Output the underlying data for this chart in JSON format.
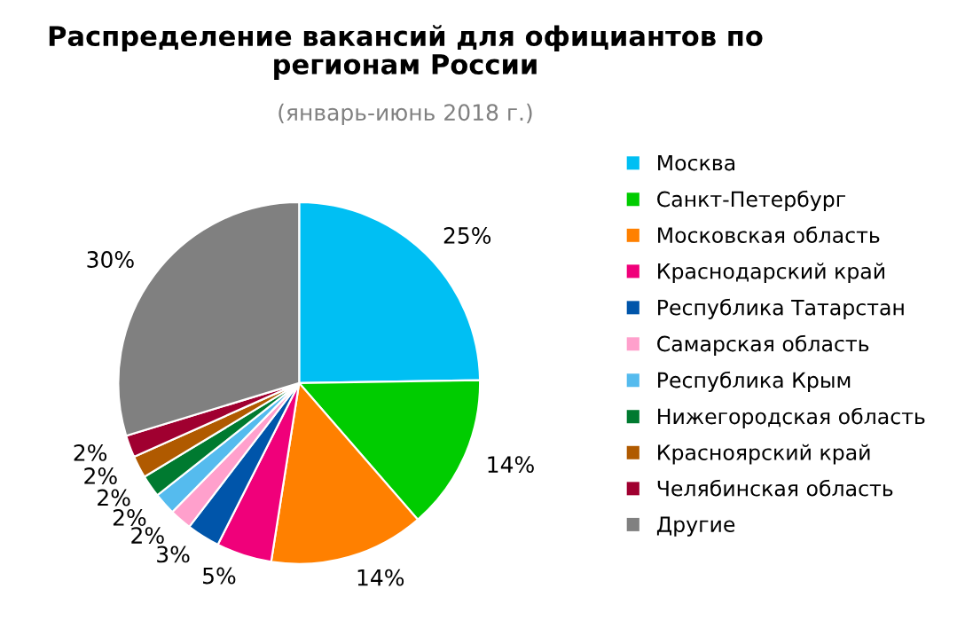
{
  "chart_data": {
    "type": "pie",
    "title": "Распределение вакансий для официантов по\nрегионам России",
    "subtitle": "(январь-июнь 2018 г.)",
    "categories": [
      "Москва",
      "Санкт-Петербург",
      "Московская область",
      "Краснодарский край",
      "Республика Татарстан",
      "Самарская область",
      "Республика Крым",
      "Нижегородская область",
      "Красноярский край",
      "Челябинская область",
      "Другие"
    ],
    "values": [
      25,
      14,
      14,
      5,
      3,
      2,
      2,
      2,
      2,
      2,
      30
    ],
    "value_labels": [
      "25%",
      "14%",
      "14%",
      "5%",
      "3%",
      "2%",
      "2%",
      "2%",
      "2%",
      "2%",
      "30%"
    ],
    "colors": [
      "#00bff3",
      "#00cc00",
      "#ff8000",
      "#f0007a",
      "#0055aa",
      "#ffa0cc",
      "#55bbee",
      "#007a30",
      "#b05a00",
      "#a00030",
      "#808080"
    ],
    "legend": "right"
  }
}
